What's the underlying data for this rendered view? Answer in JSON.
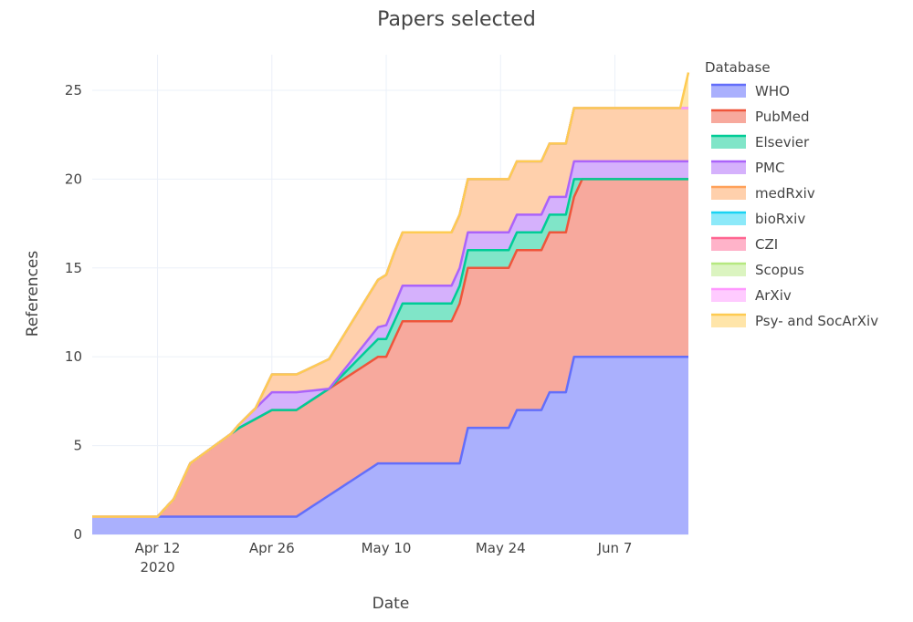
{
  "chart_data": {
    "type": "area",
    "title": "Papers selected",
    "xlabel": "Date",
    "ylabel": "References",
    "x_ticks": [
      {
        "date": "2020-04-12",
        "label": "Apr 12",
        "sublabel": "2020"
      },
      {
        "date": "2020-04-26",
        "label": "Apr 26",
        "sublabel": ""
      },
      {
        "date": "2020-05-10",
        "label": "May 10",
        "sublabel": ""
      },
      {
        "date": "2020-05-24",
        "label": "May 24",
        "sublabel": ""
      },
      {
        "date": "2020-06-07",
        "label": "Jun 7",
        "sublabel": ""
      }
    ],
    "y_ticks": [
      0,
      5,
      10,
      15,
      20,
      25
    ],
    "xlim": [
      "2020-04-04",
      "2020-06-16"
    ],
    "ylim": [
      0,
      27
    ],
    "grid": true,
    "legend_title": "Database",
    "legend_position": "right",
    "stacked": true,
    "series": [
      {
        "name": "WHO",
        "color": "#636efa",
        "fill": "#aab0fd",
        "points": [
          [
            "2020-04-04",
            1
          ],
          [
            "2020-04-29",
            1
          ],
          [
            "2020-05-09",
            4
          ],
          [
            "2020-05-19",
            4
          ],
          [
            "2020-05-20",
            6
          ],
          [
            "2020-05-25",
            6
          ],
          [
            "2020-05-26",
            7
          ],
          [
            "2020-05-29",
            7
          ],
          [
            "2020-05-30",
            8
          ],
          [
            "2020-06-01",
            8
          ],
          [
            "2020-06-02",
            10
          ],
          [
            "2020-06-16",
            10
          ]
        ]
      },
      {
        "name": "PubMed",
        "color": "#ef553b",
        "fill": "#f7a99d",
        "points": [
          [
            "2020-04-04",
            0
          ],
          [
            "2020-04-12",
            0
          ],
          [
            "2020-04-14",
            1
          ],
          [
            "2020-04-16",
            3
          ],
          [
            "2020-04-19",
            4
          ],
          [
            "2020-04-22",
            5
          ],
          [
            "2020-04-26",
            6
          ],
          [
            "2020-04-29",
            6
          ],
          [
            "2020-05-09",
            6
          ],
          [
            "2020-05-10",
            6
          ],
          [
            "2020-05-11",
            7
          ],
          [
            "2020-05-12",
            8
          ],
          [
            "2020-05-18",
            8
          ],
          [
            "2020-05-19",
            9
          ],
          [
            "2020-05-20",
            9
          ],
          [
            "2020-05-25",
            9
          ],
          [
            "2020-05-26",
            9
          ],
          [
            "2020-05-29",
            9
          ],
          [
            "2020-05-30",
            9
          ],
          [
            "2020-06-01",
            9
          ],
          [
            "2020-06-02",
            9
          ],
          [
            "2020-06-03",
            10
          ],
          [
            "2020-06-16",
            10
          ]
        ]
      },
      {
        "name": "Elsevier",
        "color": "#00cc96",
        "fill": "#80e5c8",
        "points": [
          [
            "2020-04-04",
            0
          ],
          [
            "2020-05-03",
            0
          ],
          [
            "2020-05-09",
            1
          ],
          [
            "2020-05-11",
            1
          ],
          [
            "2020-05-12",
            1
          ],
          [
            "2020-05-18",
            1
          ],
          [
            "2020-05-19",
            1
          ],
          [
            "2020-05-20",
            1
          ],
          [
            "2020-06-01",
            1
          ],
          [
            "2020-06-02",
            1
          ],
          [
            "2020-06-03",
            0
          ],
          [
            "2020-06-16",
            0
          ]
        ]
      },
      {
        "name": "PMC",
        "color": "#ab63fa",
        "fill": "#d5b1fc",
        "points": [
          [
            "2020-04-04",
            0
          ],
          [
            "2020-04-21",
            0
          ],
          [
            "2020-04-26",
            1
          ],
          [
            "2020-04-29",
            1
          ],
          [
            "2020-05-03",
            0
          ],
          [
            "2020-05-12",
            1
          ],
          [
            "2020-05-18",
            1
          ],
          [
            "2020-05-19",
            1
          ],
          [
            "2020-05-20",
            1
          ],
          [
            "2020-06-16",
            1
          ]
        ]
      },
      {
        "name": "medRxiv",
        "color": "#ffa15a",
        "fill": "#ffd0ac",
        "points": [
          [
            "2020-04-04",
            0
          ],
          [
            "2020-04-21",
            0
          ],
          [
            "2020-04-24",
            0
          ],
          [
            "2020-04-26",
            1
          ],
          [
            "2020-04-29",
            1
          ],
          [
            "2020-05-11",
            3
          ],
          [
            "2020-05-12",
            3
          ],
          [
            "2020-05-18",
            3
          ],
          [
            "2020-05-19",
            3
          ],
          [
            "2020-05-20",
            3
          ],
          [
            "2020-05-25",
            3
          ],
          [
            "2020-05-26",
            3
          ],
          [
            "2020-05-29",
            3
          ],
          [
            "2020-05-30",
            3
          ],
          [
            "2020-06-01",
            3
          ],
          [
            "2020-06-02",
            3
          ],
          [
            "2020-06-03",
            3
          ],
          [
            "2020-06-16",
            3
          ]
        ]
      },
      {
        "name": "bioRxiv",
        "color": "#19d3f3",
        "fill": "#8ce9f9",
        "points": [
          [
            "2020-04-04",
            0
          ],
          [
            "2020-06-16",
            0
          ]
        ]
      },
      {
        "name": "CZI",
        "color": "#ff6692",
        "fill": "#ffb3c9",
        "points": [
          [
            "2020-04-04",
            0
          ],
          [
            "2020-06-16",
            0
          ]
        ]
      },
      {
        "name": "Scopus",
        "color": "#b6e880",
        "fill": "#dbf4c0",
        "points": [
          [
            "2020-04-04",
            0
          ],
          [
            "2020-06-16",
            0
          ]
        ]
      },
      {
        "name": "ArXiv",
        "color": "#ff97ff",
        "fill": "#ffcbff",
        "points": [
          [
            "2020-04-04",
            0
          ],
          [
            "2020-06-16",
            0
          ]
        ]
      },
      {
        "name": "Psy- and SocArXiv",
        "color": "#fecb52",
        "fill": "#ffe5a9",
        "points": [
          [
            "2020-04-04",
            0
          ],
          [
            "2020-06-15",
            0
          ],
          [
            "2020-06-16",
            2
          ]
        ]
      }
    ]
  }
}
